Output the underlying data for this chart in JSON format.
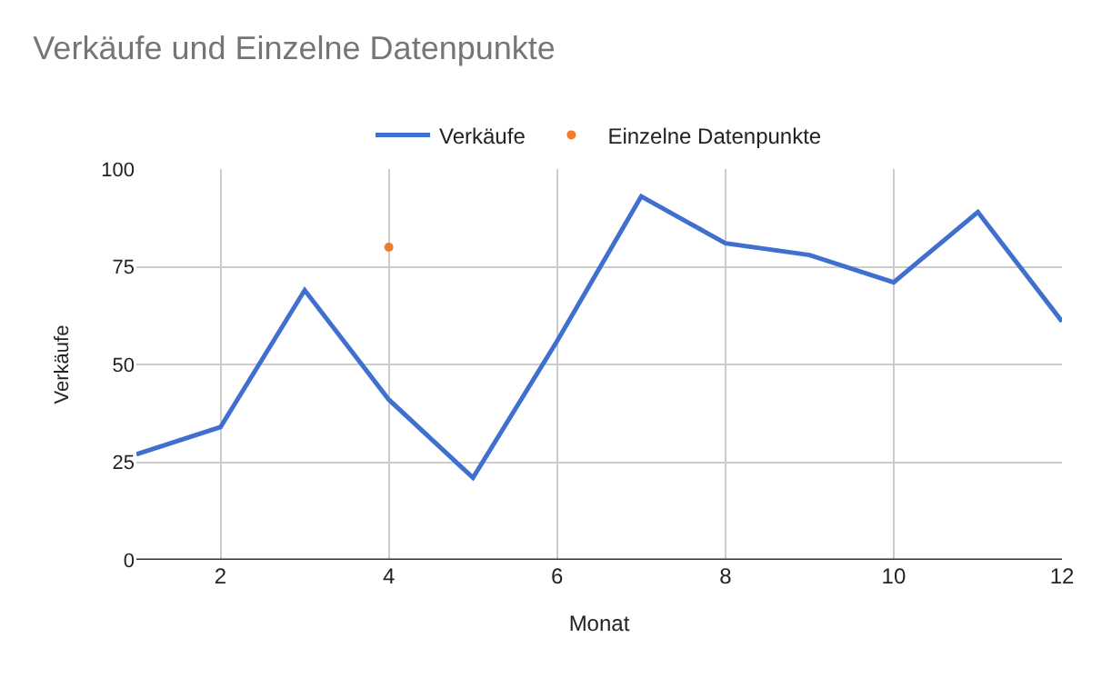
{
  "chart_data": {
    "type": "line",
    "title": "Verkäufe und Einzelne Datenpunkte",
    "xlabel": "Monat",
    "ylabel": "Verkäufe",
    "xlim": [
      1,
      12
    ],
    "xticks": [
      2,
      4,
      6,
      8,
      10,
      12
    ],
    "ylim": [
      0,
      100
    ],
    "yticks": [
      0,
      25,
      50,
      75,
      100
    ],
    "grid": true,
    "legend": "top",
    "marker": "none",
    "series": [
      {
        "name": "Verkäufe",
        "color": "#3f6fcf",
        "x": [
          1,
          2,
          3,
          4,
          5,
          6,
          7,
          8,
          9,
          10,
          11,
          12
        ],
        "values": [
          27,
          34,
          69,
          41,
          21,
          56,
          93,
          81,
          78,
          71,
          89,
          61
        ]
      },
      {
        "name": "Einzelne Datenpunkte",
        "type": "scatter",
        "marker": "circle",
        "color": "#f07b28",
        "x": [
          4
        ],
        "values": [
          80
        ]
      }
    ]
  }
}
